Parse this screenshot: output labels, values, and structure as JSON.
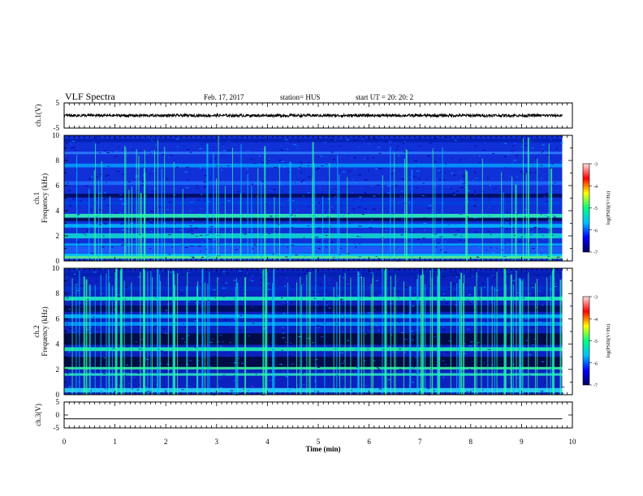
{
  "header": {
    "title": "VLF Spectra",
    "date": "Feb. 17, 2017",
    "station": "station= HUS",
    "start_ut": "start  UT =   20: 20: 2"
  },
  "chart_data": {
    "type": "heatmap",
    "title": "VLF Spectra",
    "x_axis": {
      "label": "Time  (min)",
      "range": [
        0,
        10
      ],
      "ticks": [
        "0",
        "1",
        "2",
        "3",
        "4",
        "5",
        "6",
        "7",
        "8",
        "9",
        "10"
      ]
    },
    "panels": [
      {
        "name": "ch.1 waveform",
        "ylabel": "ch.1(V)",
        "ylim": [
          -5,
          5
        ],
        "yticks": [
          "5",
          "-5"
        ],
        "type": "line",
        "approx_value": 0
      },
      {
        "name": "ch.1 spectrogram",
        "ylabel_top": "ch.1",
        "ylabel": "Frequency  (kHz)",
        "ylim": [
          0,
          10
        ],
        "yticks": [
          "0",
          "2",
          "4",
          "6",
          "8",
          "10"
        ],
        "type": "heatmap",
        "data_end_min": 9.8,
        "colorbar": {
          "label": "log(PSD)(V²/Hz)",
          "range": [
            -7,
            -3
          ],
          "ticks": [
            "-3",
            "-4",
            "-5",
            "-6",
            "-7"
          ]
        }
      },
      {
        "name": "ch.2 spectrogram",
        "ylabel_top": "ch.2",
        "ylabel": "Frequency  (kHz)",
        "ylim": [
          0,
          10
        ],
        "yticks": [
          "0",
          "2",
          "4",
          "6",
          "8",
          "10"
        ],
        "type": "heatmap",
        "data_end_min": 9.8,
        "colorbar": {
          "label": "log(PSD)(V²/Hz)",
          "range": [
            -7,
            -3
          ],
          "ticks": [
            "-3",
            "-4",
            "-5",
            "-6",
            "-7"
          ]
        }
      },
      {
        "name": "ch.3 waveform",
        "ylabel": "ch.3(V)",
        "ylim": [
          -5,
          5
        ],
        "yticks": [
          "5",
          "0",
          "-5"
        ],
        "type": "line",
        "approx_value": -1.5
      }
    ],
    "colors": {
      "colormap": [
        "#000060",
        "#0000ff",
        "#00c0ff",
        "#00ff80",
        "#ffff00",
        "#ff0000",
        "#ffe0e0"
      ]
    }
  }
}
